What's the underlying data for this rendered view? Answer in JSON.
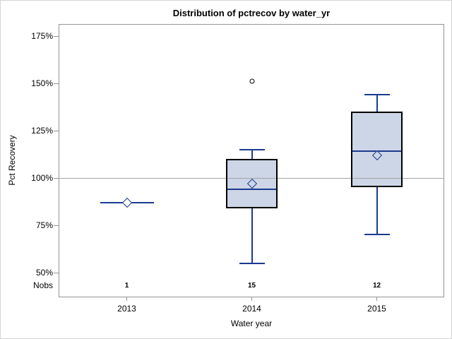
{
  "chart_data": {
    "type": "boxplot",
    "title": "Distribution of pctrecov by water_yr",
    "xlabel": "Water year",
    "ylabel": "Pct Recovery",
    "nobs_row_label": "Nobs",
    "categories": [
      "2013",
      "2014",
      "2015"
    ],
    "nobs": [
      "1",
      "15",
      "12"
    ],
    "ylim": [
      50,
      175
    ],
    "yticks": [
      175,
      150,
      125,
      100,
      75,
      50
    ],
    "ytick_labels": [
      "175%",
      "150%",
      "125%",
      "100%",
      "75%",
      "50%"
    ],
    "reference_line": 100,
    "grid": "off",
    "legend": "none",
    "groups": [
      {
        "category": "2013",
        "nobs": "1",
        "kind": "single",
        "value": 87,
        "mean": 87
      },
      {
        "category": "2014",
        "nobs": "15",
        "kind": "box",
        "whisker_low": 55,
        "q1": 84,
        "median": 94,
        "mean": 97,
        "q3": 110,
        "whisker_high": 115,
        "outliers": [
          151
        ]
      },
      {
        "category": "2015",
        "nobs": "12",
        "kind": "box",
        "whisker_low": 70,
        "q1": 95,
        "median": 114,
        "mean": 112,
        "q3": 135,
        "whisker_high": 144,
        "outliers": []
      }
    ],
    "colors": {
      "box_fill": "#cdd6e6",
      "box_border": "#000000",
      "whisker": "#1a3a8f",
      "median": "#1a3a8f",
      "mean_marker": "#1a3a8f",
      "outlier": "#000000",
      "reference_line": "#a3a3a3",
      "frame_border": "#949494",
      "page_border": "#d4d4d4"
    }
  }
}
